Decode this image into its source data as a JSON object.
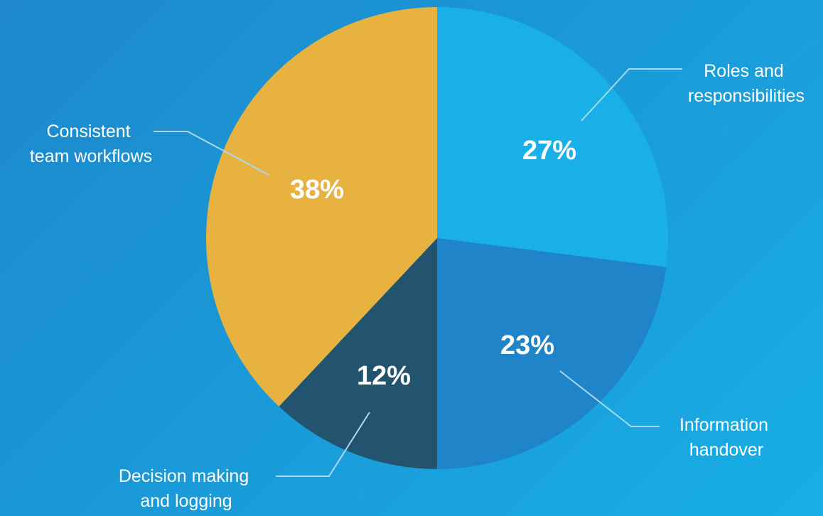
{
  "chart_data": {
    "type": "pie",
    "start_angle_deg": 0,
    "direction": "clockwise",
    "slices": [
      {
        "label": "Roles and responsibilities",
        "label_lines": [
          "Roles and",
          "responsibilities"
        ],
        "value": 27,
        "value_label": "27%",
        "color": "#19b0e8"
      },
      {
        "label": "Information handover",
        "label_lines": [
          "Information",
          "handover"
        ],
        "value": 23,
        "value_label": "23%",
        "color": "#1f84c8"
      },
      {
        "label": "Decision making and logging",
        "label_lines": [
          "Decision making",
          "and logging"
        ],
        "value": 12,
        "value_label": "12%",
        "color": "#22546f"
      },
      {
        "label": "Consistent team workflows",
        "label_lines": [
          "Consistent",
          "team workflows"
        ],
        "value": 38,
        "value_label": "38%",
        "color": "#e8b240"
      }
    ]
  }
}
